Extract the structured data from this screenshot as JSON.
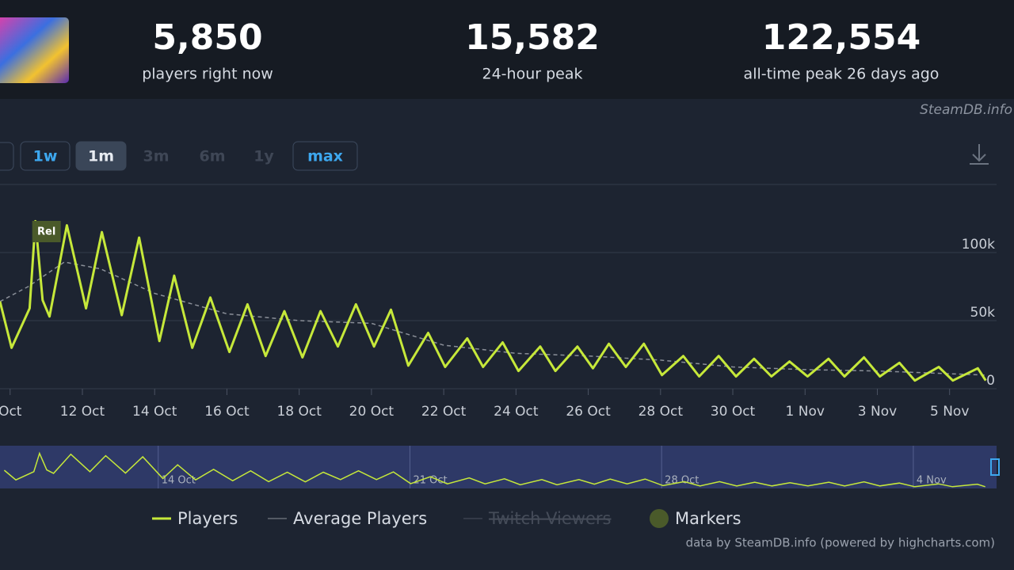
{
  "header": {
    "stats": [
      {
        "value": "5,850",
        "label": "players right now"
      },
      {
        "value": "15,582",
        "label": "24-hour peak"
      },
      {
        "value": "122,554",
        "label": "all-time peak 26 days ago"
      }
    ],
    "source": "SteamDB.info"
  },
  "buttons": [
    {
      "label": "1w",
      "state": "enabled"
    },
    {
      "label": "1m",
      "state": "active"
    },
    {
      "label": "3m",
      "state": "disabled"
    },
    {
      "label": "6m",
      "state": "disabled"
    },
    {
      "label": "1y",
      "state": "disabled"
    },
    {
      "label": "max",
      "state": "enabled"
    }
  ],
  "chart_data": {
    "type": "line",
    "grid": true,
    "xlim": [
      9.72,
      37.3
    ],
    "xticks": [
      {
        "value": 10,
        "label": "Oct"
      },
      {
        "value": 12,
        "label": "12 Oct"
      },
      {
        "value": 14,
        "label": "14 Oct"
      },
      {
        "value": 16,
        "label": "16 Oct"
      },
      {
        "value": 18,
        "label": "18 Oct"
      },
      {
        "value": 20,
        "label": "20 Oct"
      },
      {
        "value": 22,
        "label": "22 Oct"
      },
      {
        "value": 24,
        "label": "24 Oct"
      },
      {
        "value": 26,
        "label": "26 Oct"
      },
      {
        "value": 28,
        "label": "28 Oct"
      },
      {
        "value": 30,
        "label": "30 Oct"
      },
      {
        "value": 32,
        "label": "1 Nov"
      },
      {
        "value": 34,
        "label": "3 Nov"
      },
      {
        "value": 36,
        "label": "5 Nov"
      }
    ],
    "ylim": [
      0,
      150000
    ],
    "yticks": [
      0,
      {
        "value": 50000,
        "label": "50k"
      },
      {
        "value": 100000,
        "label": "100k"
      }
    ],
    "series": [
      {
        "name": "Players",
        "color": "#c6e83a",
        "dash": false,
        "x": [
          9.72,
          10.04,
          10.54,
          10.7,
          10.9,
          11.09,
          11.57,
          12.1,
          12.54,
          13.09,
          13.57,
          14.13,
          14.54,
          15.04,
          15.54,
          16.07,
          16.57,
          17.07,
          17.59,
          18.09,
          18.59,
          19.07,
          19.57,
          20.07,
          20.54,
          21.02,
          21.57,
          22.04,
          22.65,
          23.09,
          23.63,
          24.07,
          24.67,
          25.09,
          25.7,
          26.13,
          26.57,
          27.04,
          27.54,
          28.04,
          28.63,
          29.07,
          29.61,
          30.09,
          30.59,
          31.07,
          31.57,
          32.07,
          32.65,
          33.09,
          33.63,
          34.07,
          34.61,
          35.04,
          35.7,
          36.09,
          36.78,
          37.0
        ],
        "values": [
          64000,
          30000,
          59000,
          123000,
          65000,
          53000,
          120000,
          59000,
          115000,
          54000,
          111000,
          35000,
          83000,
          30000,
          67000,
          27000,
          62000,
          24000,
          57000,
          23000,
          57000,
          31000,
          62000,
          31000,
          58000,
          17000,
          41000,
          16000,
          37000,
          16000,
          34000,
          13000,
          31000,
          13000,
          31000,
          15000,
          33000,
          16000,
          33000,
          10000,
          24000,
          9000,
          24000,
          9000,
          22000,
          9000,
          20000,
          9000,
          22000,
          9000,
          23000,
          9000,
          19000,
          6000,
          16000,
          6000,
          15000,
          6000
        ]
      },
      {
        "name": "Average Players",
        "color": "#8a8f98",
        "dash": true,
        "x": [
          9.72,
          10.5,
          11.5,
          12.5,
          14,
          16,
          18,
          20,
          21,
          22,
          24,
          26,
          28,
          30,
          32,
          34,
          36,
          37
        ],
        "values": [
          64000,
          75000,
          93000,
          88000,
          70000,
          55000,
          50000,
          48000,
          40000,
          32000,
          26000,
          24000,
          21000,
          16000,
          14000,
          13000,
          11000,
          10000
        ]
      },
      {
        "name": "Twitch Viewers",
        "color": "#4a5160",
        "hidden": true
      }
    ],
    "annotations": [
      {
        "x": 10.7,
        "label": "Rel"
      }
    ],
    "markers_legend": "Markers",
    "navigator": {
      "xlim": [
        9.6,
        37.8
      ],
      "xticks": [
        {
          "value": 14,
          "label": "14 Oct"
        },
        {
          "value": 21,
          "label": "21 Oct"
        },
        {
          "value": 28,
          "label": "28 Oct"
        },
        {
          "value": 35,
          "label": "4 Nov"
        }
      ]
    },
    "credit": "data by SteamDB.info (powered by highcharts.com)"
  }
}
